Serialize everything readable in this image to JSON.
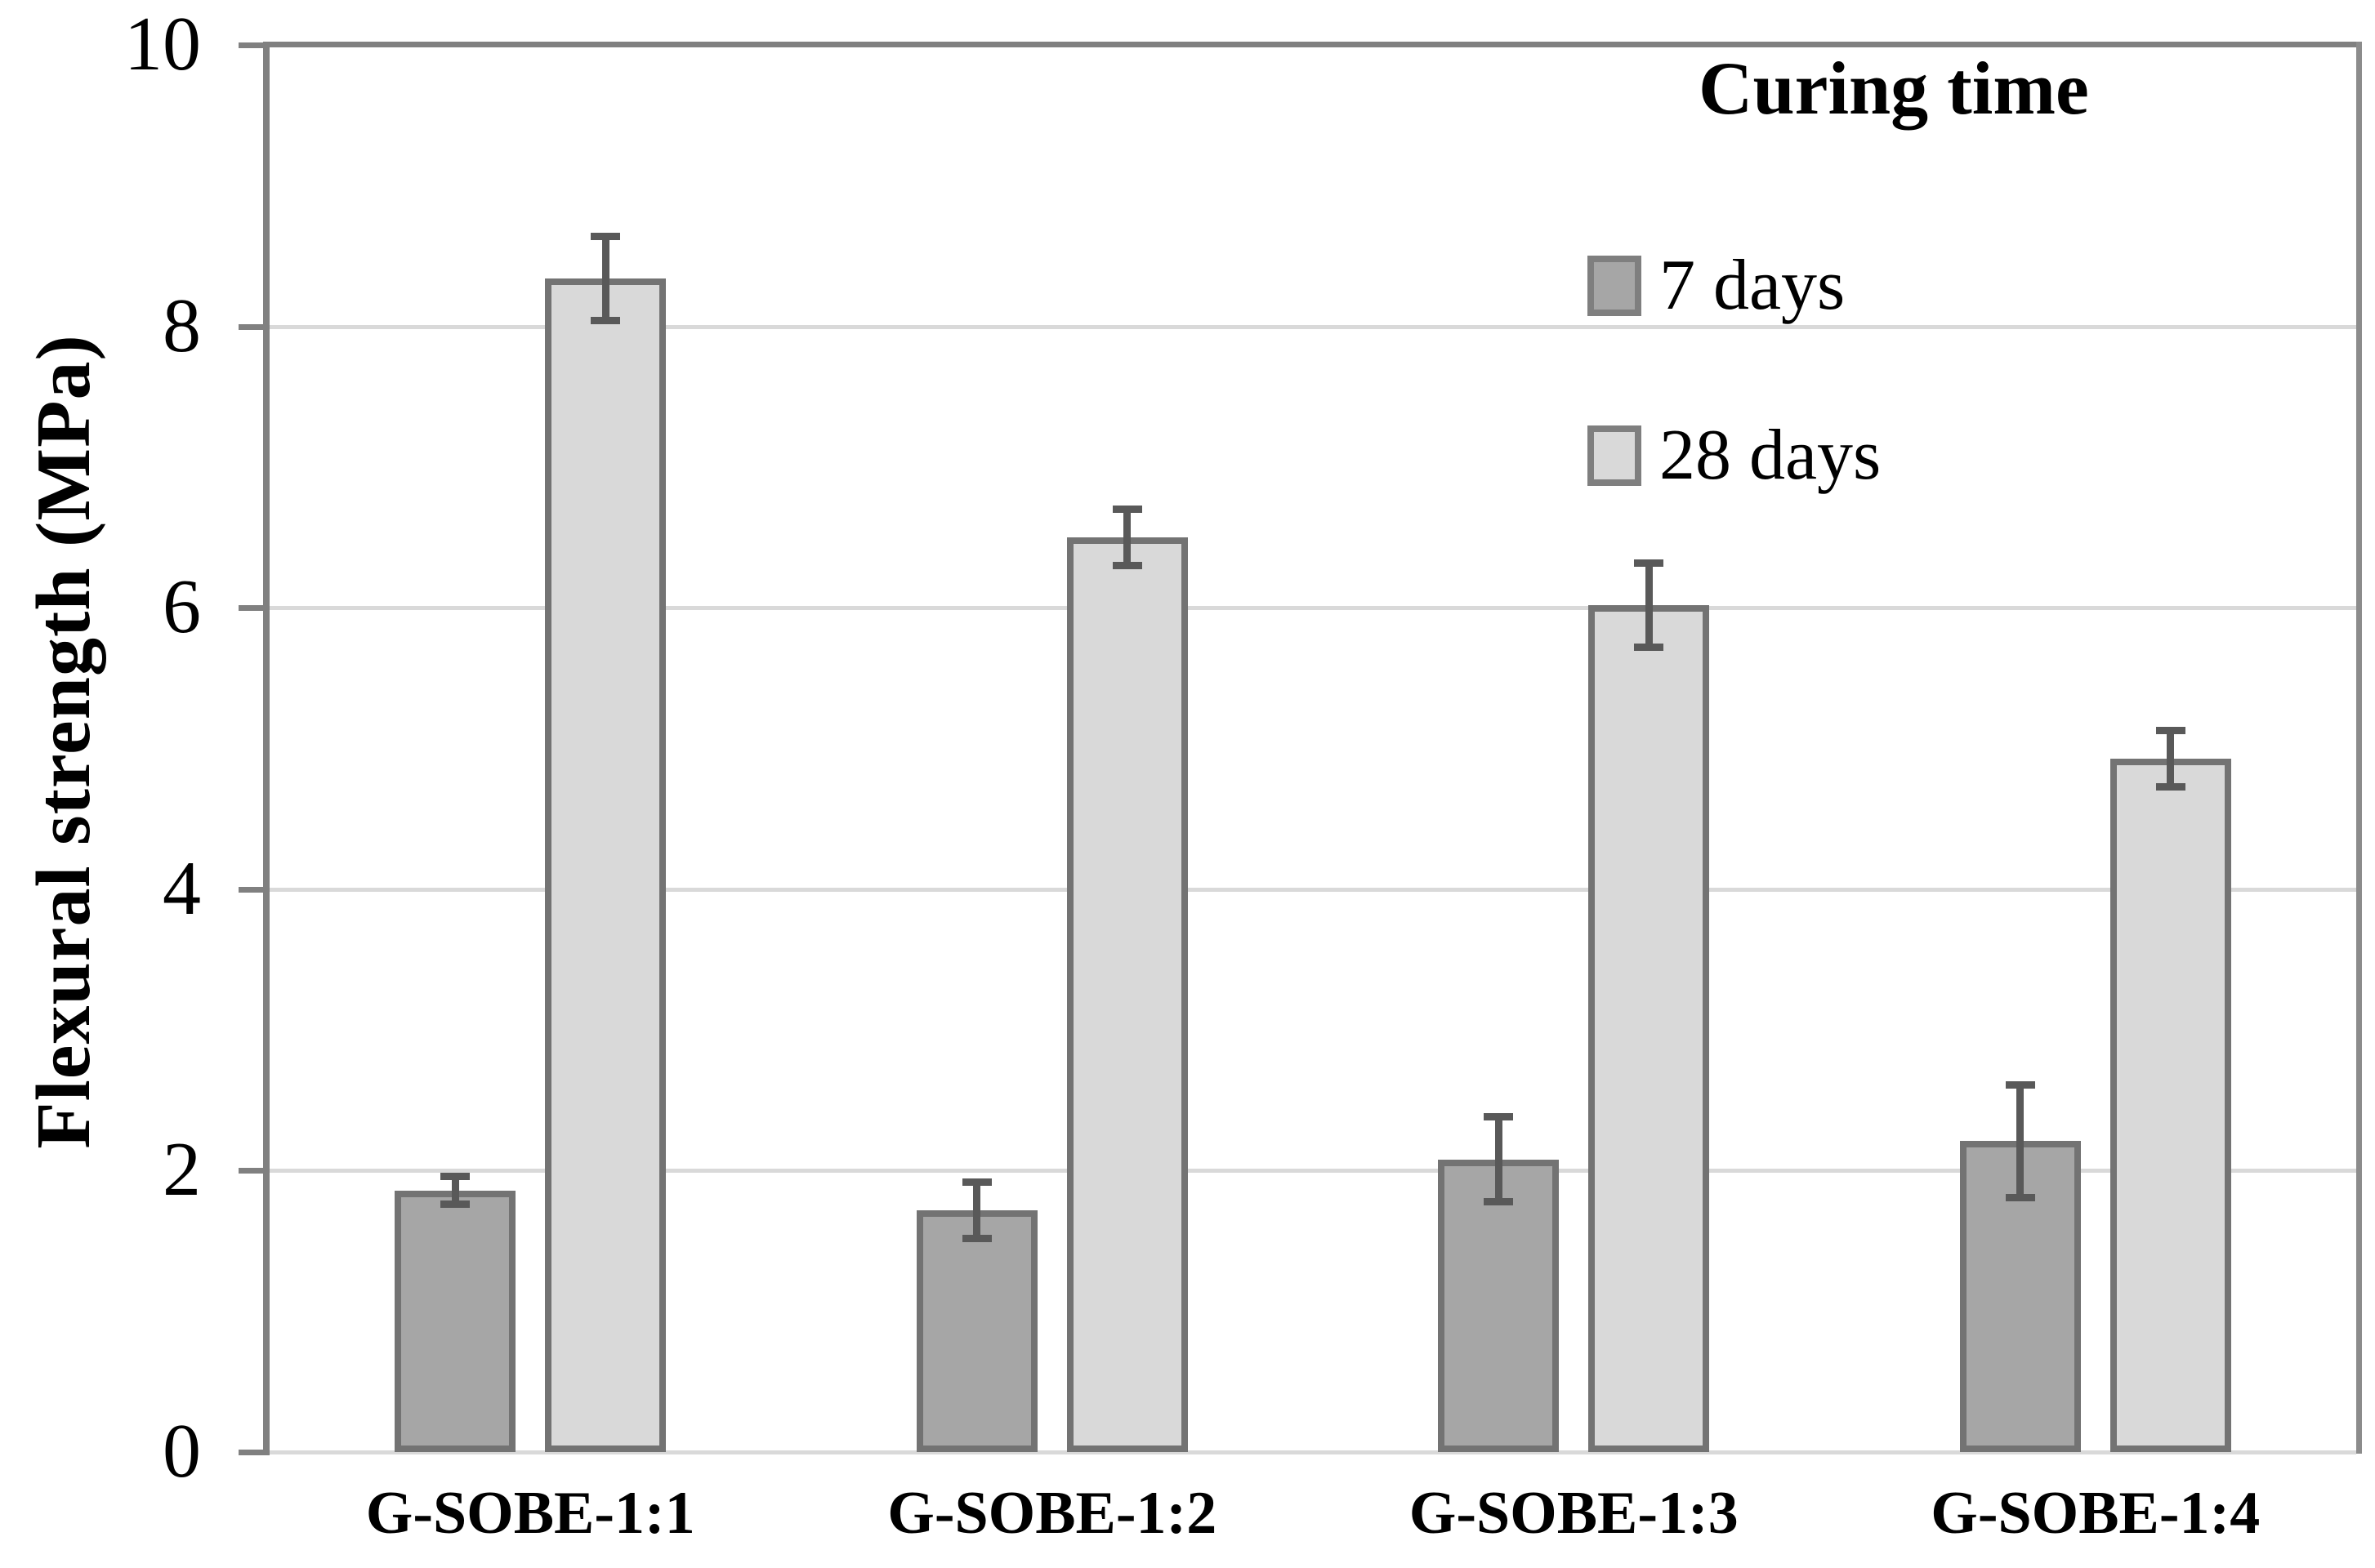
{
  "chart_data": {
    "type": "bar",
    "title": "",
    "xlabel": "",
    "ylabel": "Flexural strength (MPa)",
    "ylim": [
      0,
      10
    ],
    "yticks": [
      0,
      2,
      4,
      6,
      8,
      10
    ],
    "grid": "horizontal",
    "legend": {
      "title": "Curing time",
      "position": "top-right",
      "entries": [
        "7 days",
        "28 days"
      ]
    },
    "categories": [
      "G-SOBE-1:1",
      "G-SOBE-1:2",
      "G-SOBE-1:3",
      "G-SOBE-1:4"
    ],
    "series": [
      {
        "name": "7 days",
        "fill": "#a6a6a6",
        "border": "#737373",
        "values": [
          1.86,
          1.72,
          2.08,
          2.21
        ],
        "errors": [
          0.1,
          0.2,
          0.3,
          0.4
        ]
      },
      {
        "name": "28 days",
        "fill": "#d9d9d9",
        "border": "#737373",
        "values": [
          8.34,
          6.5,
          6.02,
          4.93
        ],
        "errors": [
          0.3,
          0.2,
          0.3,
          0.2
        ]
      }
    ],
    "colors": {
      "error_bar": "#595959",
      "gridline": "#d9d9d9",
      "axis": "#808080",
      "right_border": "#8c8c8c",
      "baseline": "#d9d9d9",
      "text": "#000000"
    }
  }
}
